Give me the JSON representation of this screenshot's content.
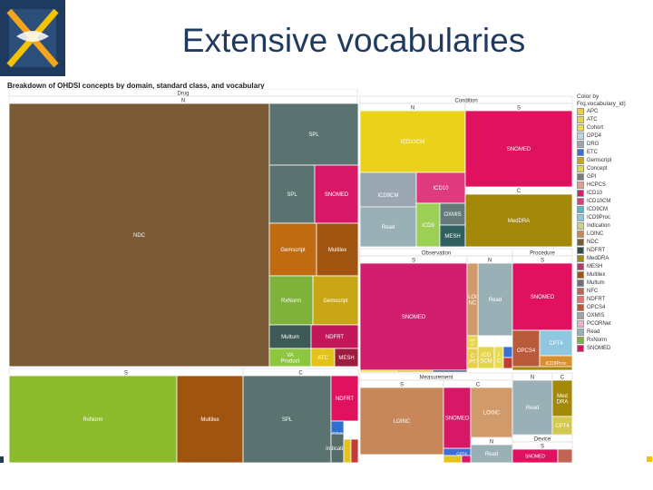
{
  "slide": {
    "title": "Extensive vocabularies"
  },
  "chart_data": {
    "type": "treemap",
    "title": "Breakdown of OHDSI concepts by domain, standard class, and vocabulary",
    "legend": {
      "header": [
        "Color by",
        "Frq.vocabulary_id)"
      ],
      "placement": "right",
      "items": [
        {
          "label": "APC",
          "color": "#e8cf4a"
        },
        {
          "label": "ATC",
          "color": "#e4d54e"
        },
        {
          "label": "Cohort",
          "color": "#edd850"
        },
        {
          "label": "DPD4",
          "color": "#b9d7e3"
        },
        {
          "label": "DRG",
          "color": "#9aa7b2"
        },
        {
          "label": "ETC",
          "color": "#3b6fd6"
        },
        {
          "label": "Gemscript",
          "color": "#c9a616"
        },
        {
          "label": "Concept",
          "color": "#d9d950"
        },
        {
          "label": "GPI",
          "color": "#7b7b7b"
        },
        {
          "label": "HCPCS",
          "color": "#e3a08a"
        },
        {
          "label": "ICD10",
          "color": "#d11f6e"
        },
        {
          "label": "ICD10CM",
          "color": "#e03a7f"
        },
        {
          "label": "ICD9CM",
          "color": "#57b7c9"
        },
        {
          "label": "ICD9Proc",
          "color": "#8fc6e0"
        },
        {
          "label": "Indication",
          "color": "#c7d28a"
        },
        {
          "label": "LOINC",
          "color": "#c8875a"
        },
        {
          "label": "NDC",
          "color": "#7b5a36"
        },
        {
          "label": "NDFRT",
          "color": "#2f4c4c"
        },
        {
          "label": "MedDRA",
          "color": "#a3880a"
        },
        {
          "label": "MESH",
          "color": "#b8385e"
        },
        {
          "label": "Multilex",
          "color": "#a15410"
        },
        {
          "label": "Multum",
          "color": "#6f6f6f"
        },
        {
          "label": "NFC",
          "color": "#c16655"
        },
        {
          "label": "NDFRT",
          "color": "#e87070"
        },
        {
          "label": "OPCS4",
          "color": "#b95a3a"
        },
        {
          "label": "OXMIS",
          "color": "#a3a3a3"
        },
        {
          "label": "PCORNet",
          "color": "#e8b3c6"
        },
        {
          "label": "Read",
          "color": "#9ab0b7"
        },
        {
          "label": "RxNorm",
          "color": "#7fb23a"
        },
        {
          "label": "SNOMED",
          "color": "#e0125f"
        }
      ]
    },
    "domains": [
      {
        "name": "Drug",
        "classes": [
          {
            "name": "N",
            "cells": [
              {
                "label": "NDC",
                "vocabulary": "NDC",
                "color": "#7b5a36"
              },
              {
                "label": "SPL",
                "vocabulary": "SPL",
                "color": "#5a7270"
              },
              {
                "label": "SPL",
                "vocabulary": "SPL",
                "color": "#5a7270"
              },
              {
                "label": "SNOMED",
                "vocabulary": "SNOMED",
                "color": "#d61867"
              },
              {
                "label": "Gemscript",
                "vocabulary": "Gemscript",
                "color": "#c06a12"
              },
              {
                "label": "Multilex",
                "vocabulary": "Multilex",
                "color": "#a15410"
              },
              {
                "label": "RxNorm",
                "vocabulary": "RxNorm",
                "color": "#7fb23a"
              },
              {
                "label": "Gemscript",
                "vocabulary": "Gemscript",
                "color": "#c9a616"
              },
              {
                "label": "Multum",
                "vocabulary": "Multum",
                "color": "#3e5a56"
              },
              {
                "label": "NDFRT",
                "vocabulary": "NDFRT",
                "color": "#c2185b"
              },
              {
                "label": "VA Product",
                "vocabulary": "VA Product",
                "color": "#8dc63f"
              },
              {
                "label": "ATC",
                "vocabulary": "ATC",
                "color": "#e4c21a"
              },
              {
                "label": "MESH",
                "vocabulary": "MESH",
                "color": "#9c1c3f"
              }
            ]
          },
          {
            "name": "S",
            "cells": [
              {
                "label": "RxNorm",
                "vocabulary": "RxNorm",
                "color": "#8dbb2e"
              },
              {
                "label": "Multilex",
                "vocabulary": "Multilex",
                "color": "#a15410"
              }
            ]
          },
          {
            "name": "C",
            "cells": [
              {
                "label": "SPL",
                "vocabulary": "SPL",
                "color": "#5a7270"
              },
              {
                "label": "NDFRT",
                "vocabulary": "NDFRT",
                "color": "#e0125f"
              },
              {
                "label": "ETC",
                "vocabulary": "ETC",
                "color": "#2f6fd0"
              },
              {
                "label": "Indication",
                "vocabulary": "Indication",
                "color": "#566c69"
              },
              {
                "label": "",
                "vocabulary": "",
                "color": "#e7c21c"
              },
              {
                "label": "",
                "vocabulary": "",
                "color": "#c13b38"
              }
            ]
          }
        ]
      },
      {
        "name": "Condition",
        "classes": [
          {
            "name": "N",
            "cells": [
              {
                "label": "ICD10CM",
                "vocabulary": "ICD10CM",
                "color": "#ead21c"
              },
              {
                "label": "ICD9CM",
                "vocabulary": "ICD9CM",
                "color": "#9aa7b2"
              },
              {
                "label": "Read",
                "vocabulary": "Read",
                "color": "#9ab0b7"
              },
              {
                "label": "ICD10",
                "vocabulary": "ICD10",
                "color": "#e03a7f"
              },
              {
                "label": "ICD9",
                "vocabulary": "ICD9",
                "color": "#9ccf56"
              },
              {
                "label": "OXMIS",
                "vocabulary": "OXMIS",
                "color": "#637a78"
              },
              {
                "label": "MESH",
                "vocabulary": "MESH",
                "color": "#2f5f5f"
              }
            ]
          },
          {
            "name": "S",
            "cells": [
              {
                "label": "SNOMED",
                "vocabulary": "SNOMED",
                "color": "#e0125f"
              },
              {
                "label": "MedDRA",
                "vocabulary": "MedDRA",
                "color": "#a3880a"
              }
            ]
          }
        ]
      },
      {
        "name": "Observation",
        "classes": [
          {
            "name": "S",
            "cells": [
              {
                "label": "SNOMED",
                "vocabulary": "SNOMED",
                "color": "#d11f6e"
              },
              {
                "label": "",
                "vocabulary": "",
                "color": "#ead21c"
              },
              {
                "label": "",
                "vocabulary": "",
                "color": "#d4b21a"
              },
              {
                "label": "",
                "vocabulary": "",
                "color": "#1f3a5f"
              }
            ]
          },
          {
            "name": "N",
            "cells": [
              {
                "label": "Read",
                "vocabulary": "Read",
                "color": "#9ab0b7"
              },
              {
                "label": "LOI NC",
                "vocabulary": "LOINC",
                "color": "#d09a6a"
              },
              {
                "label": "AP C",
                "vocabulary": "APC",
                "color": "#e4d54e"
              },
              {
                "label": "C PT",
                "vocabulary": "CPT",
                "color": "#e8cf4a"
              },
              {
                "label": "ICD SCM",
                "vocabulary": "ICD",
                "color": "#e4d54e"
              },
              {
                "label": "I C",
                "vocabulary": "ICD",
                "color": "#eadc52"
              },
              {
                "label": "",
                "vocabulary": "",
                "color": "#3b6fd6"
              },
              {
                "label": "",
                "vocabulary": "",
                "color": "#c13b38"
              }
            ]
          }
        ]
      },
      {
        "name": "Procedure",
        "classes": [
          {
            "name": "S",
            "cells": [
              {
                "label": "SNOMED",
                "vocabulary": "SNOMED",
                "color": "#e0125f"
              },
              {
                "label": "OPCS4",
                "vocabulary": "OPCS4",
                "color": "#b95a3a"
              },
              {
                "label": "CPT4",
                "vocabulary": "CPT4",
                "color": "#8fc6e0"
              },
              {
                "label": "ICD9Proc",
                "vocabulary": "ICD9Proc",
                "color": "#d79030"
              },
              {
                "label": "",
                "vocabulary": "",
                "color": "#a3880a"
              }
            ]
          }
        ]
      },
      {
        "name": "Measurement",
        "classes": [
          {
            "name": "S",
            "cells": [
              {
                "label": "LOINC",
                "vocabulary": "LOINC",
                "color": "#c8875a"
              },
              {
                "label": "CPT4",
                "vocabulary": "CPT4",
                "color": "#3b6fd6"
              }
            ]
          },
          {
            "name": "C",
            "cells": [
              {
                "label": "SNOMED",
                "vocabulary": "SNOMED",
                "color": "#d61867"
              },
              {
                "label": "LOINC",
                "vocabulary": "LOINC",
                "color": "#d09a6a"
              }
            ]
          },
          {
            "name": "N",
            "cells": [
              {
                "label": "Read",
                "vocabulary": "Read",
                "color": "#9ab0b7"
              },
              {
                "label": "",
                "vocabulary": "",
                "color": "#e4c21a"
              },
              {
                "label": "",
                "vocabulary": "",
                "color": "#d61867"
              }
            ]
          }
        ]
      },
      {
        "name": "",
        "classes": [
          {
            "name": "N",
            "cells": [
              {
                "label": "Read",
                "vocabulary": "Read",
                "color": "#9ab0b7"
              },
              {
                "label": "Med DRA",
                "vocabulary": "MedDRA",
                "color": "#a3880a"
              },
              {
                "label": "CPT4",
                "vocabulary": "CPT4",
                "color": "#d4c850"
              }
            ]
          },
          {
            "name": "C",
            "cells": []
          }
        ]
      },
      {
        "name": "Device",
        "classes": [
          {
            "name": "S",
            "cells": [
              {
                "label": "SNOMED",
                "vocabulary": "SNOMED",
                "color": "#e0125f"
              },
              {
                "label": "",
                "vocabulary": "",
                "color": "#c16655"
              }
            ]
          }
        ]
      }
    ]
  }
}
